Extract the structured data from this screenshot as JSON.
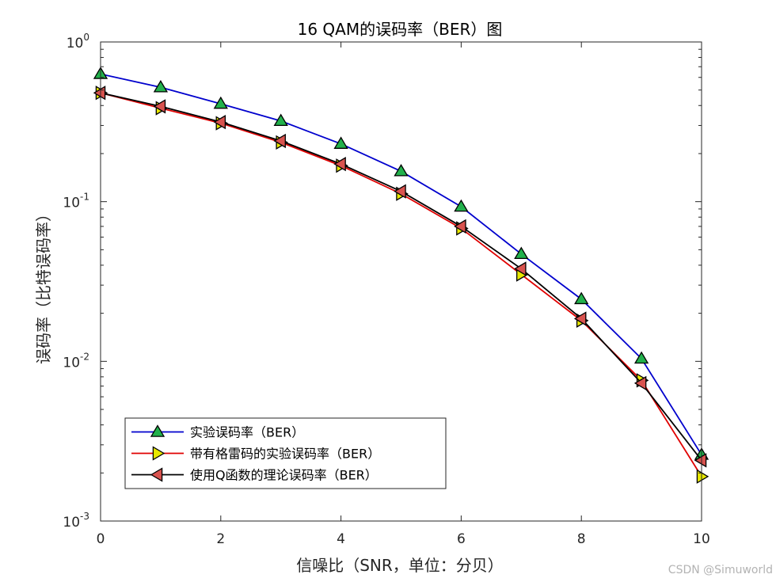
{
  "chart_data": {
    "type": "line",
    "title": "16 QAM的误码率（BER）图",
    "xlabel": "信噪比（SNR，单位：分贝）",
    "ylabel": "误码率（比特误码率）",
    "x": [
      0,
      1,
      2,
      3,
      4,
      5,
      6,
      7,
      8,
      9,
      10
    ],
    "xlim": [
      0,
      10
    ],
    "xticks": [
      0,
      2,
      4,
      6,
      8,
      10
    ],
    "yscale": "log",
    "ylim": [
      0.001,
      1
    ],
    "yticks": [
      {
        "value": 1,
        "base": "10",
        "exp": "0"
      },
      {
        "value": 0.1,
        "base": "10",
        "exp": "-1"
      },
      {
        "value": 0.01,
        "base": "10",
        "exp": "-2"
      },
      {
        "value": 0.001,
        "base": "10",
        "exp": "-3"
      }
    ],
    "grid": false,
    "legend_position": "lower-left",
    "series": [
      {
        "name": "实验误码率（BER）",
        "color": "#0000cd",
        "marker": "triangle-up",
        "marker_color": "#22b14c",
        "values": [
          0.63,
          0.52,
          0.41,
          0.32,
          0.23,
          0.155,
          0.093,
          0.047,
          0.0245,
          0.0104,
          0.0026
        ]
      },
      {
        "name": "带有格雷码的实验误码率（BER）",
        "color": "#e00000",
        "marker": "triangle-right",
        "marker_color": "#e8e800",
        "values": [
          0.48,
          0.385,
          0.31,
          0.235,
          0.168,
          0.112,
          0.068,
          0.035,
          0.018,
          0.0076,
          0.0019
        ]
      },
      {
        "name": "使用Q函数的理论误码率（BER）",
        "color": "#000000",
        "marker": "triangle-left",
        "marker_color": "#d9534f",
        "values": [
          0.48,
          0.395,
          0.315,
          0.24,
          0.172,
          0.116,
          0.07,
          0.038,
          0.0185,
          0.0073,
          0.0024
        ]
      }
    ]
  },
  "watermark": "CSDN @Simuworld"
}
